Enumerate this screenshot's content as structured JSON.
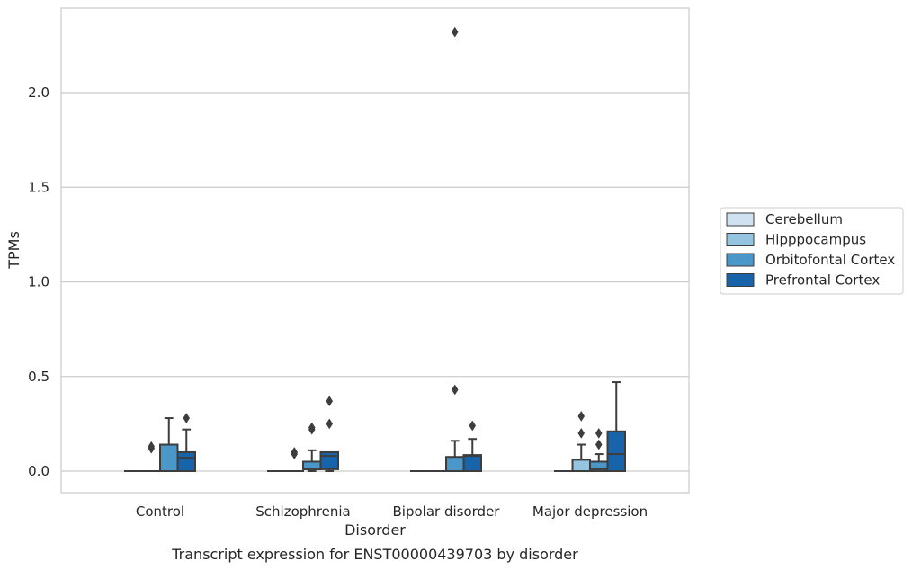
{
  "chart_data": {
    "type": "box",
    "xlabel": "Disorder",
    "ylabel": "TPMs",
    "caption": "Transcript expression for ENST00000439703 by disorder",
    "ylim": [
      -0.11,
      2.45
    ],
    "yticks": [
      0.0,
      0.5,
      1.0,
      1.5,
      2.0
    ],
    "ytick_labels": [
      "0.0",
      "0.5",
      "1.0",
      "1.5",
      "2.0"
    ],
    "grid": "horizontal",
    "legend_position": "right",
    "categories": [
      "Control",
      "Schizophrenia",
      "Bipolar disorder",
      "Major depression"
    ],
    "series": [
      {
        "name": "Cerebellum",
        "color": "#d0e1f2",
        "boxes": [
          {
            "q1": 0,
            "median": 0,
            "q3": 0,
            "whisker_low": 0,
            "whisker_high": 0,
            "outliers": []
          },
          {
            "q1": 0,
            "median": 0,
            "q3": 0,
            "whisker_low": 0,
            "whisker_high": 0,
            "outliers": []
          },
          {
            "q1": 0,
            "median": 0,
            "q3": 0,
            "whisker_low": 0,
            "whisker_high": 0,
            "outliers": []
          },
          {
            "q1": 0,
            "median": 0,
            "q3": 0,
            "whisker_low": 0,
            "whisker_high": 0,
            "outliers": []
          }
        ]
      },
      {
        "name": "Hipppocampus",
        "color": "#94c4df",
        "boxes": [
          {
            "q1": 0,
            "median": 0,
            "q3": 0,
            "whisker_low": 0,
            "whisker_high": 0,
            "outliers": [
              0.12,
              0.13
            ]
          },
          {
            "q1": 0,
            "median": 0,
            "q3": 0,
            "whisker_low": 0,
            "whisker_high": 0,
            "outliers": [
              0.09,
              0.1
            ]
          },
          {
            "q1": 0,
            "median": 0,
            "q3": 0,
            "whisker_low": 0,
            "whisker_high": 0,
            "outliers": []
          },
          {
            "q1": 0,
            "median": 0,
            "q3": 0.06,
            "whisker_low": 0,
            "whisker_high": 0.14,
            "outliers": [
              0.2,
              0.29
            ]
          }
        ]
      },
      {
        "name": "Orbitofontal Cortex",
        "color": "#4a98c9",
        "boxes": [
          {
            "q1": 0,
            "median": 0,
            "q3": 0.14,
            "whisker_low": 0,
            "whisker_high": 0.28,
            "outliers": []
          },
          {
            "q1": 0.01,
            "median": 0.01,
            "q3": 0.05,
            "whisker_low": 0,
            "whisker_high": 0.11,
            "outliers": [
              0.22,
              0.23
            ]
          },
          {
            "q1": 0,
            "median": 0,
            "q3": 0.075,
            "whisker_low": 0,
            "whisker_high": 0.16,
            "outliers": [
              0.43,
              2.32
            ]
          },
          {
            "q1": 0,
            "median": 0.01,
            "q3": 0.05,
            "whisker_low": 0,
            "whisker_high": 0.09,
            "outliers": [
              0.14,
              0.2
            ]
          }
        ]
      },
      {
        "name": "Prefrontal Cortex",
        "color": "#1764ab",
        "boxes": [
          {
            "q1": 0,
            "median": 0.07,
            "q3": 0.1,
            "whisker_low": 0,
            "whisker_high": 0.22,
            "outliers": [
              0.28
            ]
          },
          {
            "q1": 0.01,
            "median": 0.08,
            "q3": 0.1,
            "whisker_low": 0,
            "whisker_high": 0.1,
            "outliers": [
              0.25,
              0.37
            ]
          },
          {
            "q1": 0,
            "median": 0.08,
            "q3": 0.085,
            "whisker_low": 0,
            "whisker_high": 0.17,
            "outliers": [
              0.24
            ]
          },
          {
            "q1": 0,
            "median": 0.09,
            "q3": 0.21,
            "whisker_low": 0,
            "whisker_high": 0.47,
            "outliers": []
          }
        ]
      }
    ]
  }
}
